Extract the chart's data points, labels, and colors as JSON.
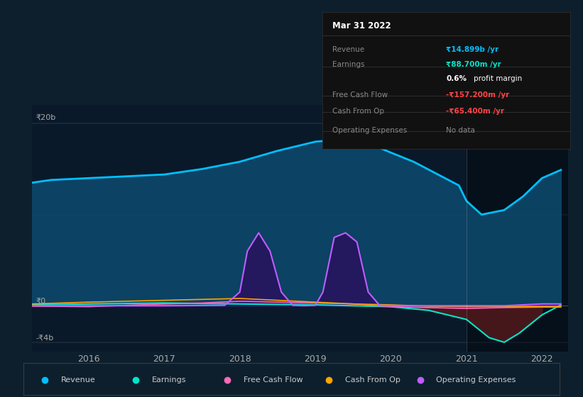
{
  "bg_color": "#0d1f2d",
  "plot_bg": "#0a1929",
  "x_ticks": [
    2016,
    2017,
    2018,
    2019,
    2020,
    2021,
    2022
  ],
  "x_min": 2015.25,
  "x_max": 2022.35,
  "y_min": -5000000000,
  "y_max": 22000000000,
  "shade_start": 2021.0,
  "grid_lines": [
    20000000000,
    10000000000,
    0,
    -4000000000
  ],
  "ylabel_top": "₹20b",
  "ylabel_zero": "₹0",
  "ylabel_bottom": "-₹4b",
  "legend": [
    {
      "label": "Revenue",
      "color": "#00bfff"
    },
    {
      "label": "Earnings",
      "color": "#00e5cc"
    },
    {
      "label": "Free Cash Flow",
      "color": "#ff69b4"
    },
    {
      "label": "Cash From Op",
      "color": "#ffa500"
    },
    {
      "label": "Operating Expenses",
      "color": "#bf5fff"
    }
  ],
  "info_box": {
    "title": "Mar 31 2022",
    "rows": [
      {
        "label": "Revenue",
        "value": "₹14.899b /yr",
        "value_color": "#00bfff"
      },
      {
        "label": "Earnings",
        "value": "₹88.700m /yr",
        "value_color": "#00e5cc"
      },
      {
        "label": "",
        "value": "0.6% profit margin",
        "value_color": "#ffffff"
      },
      {
        "label": "Free Cash Flow",
        "value": "-₹157.200m /yr",
        "value_color": "#ff4444"
      },
      {
        "label": "Cash From Op",
        "value": "-₹65.400m /yr",
        "value_color": "#ff4444"
      },
      {
        "label": "Operating Expenses",
        "value": "No data",
        "value_color": "#888888"
      }
    ]
  },
  "revenue": {
    "x": [
      2015.25,
      2015.5,
      2016.0,
      2016.5,
      2017.0,
      2017.5,
      2018.0,
      2018.5,
      2019.0,
      2019.3,
      2019.5,
      2019.8,
      2020.0,
      2020.3,
      2020.6,
      2020.9,
      2021.0,
      2021.2,
      2021.5,
      2021.75,
      2022.0,
      2022.25
    ],
    "y": [
      13500000000,
      13800000000,
      14000000000,
      14200000000,
      14400000000,
      15000000000,
      15800000000,
      17000000000,
      18000000000,
      18200000000,
      18100000000,
      17500000000,
      16800000000,
      15800000000,
      14500000000,
      13200000000,
      11500000000,
      10000000000,
      10500000000,
      12000000000,
      14000000000,
      14899000000
    ],
    "color": "#00bfff",
    "fill_color": "#0d4a6e",
    "linewidth": 2.0
  },
  "earnings": {
    "x": [
      2015.25,
      2016.0,
      2017.0,
      2018.0,
      2019.0,
      2020.0,
      2020.5,
      2021.0,
      2021.3,
      2021.5,
      2021.7,
      2022.0,
      2022.25
    ],
    "y": [
      100000000,
      200000000,
      300000000,
      200000000,
      100000000,
      -100000000,
      -500000000,
      -1500000000,
      -3500000000,
      -4000000000,
      -3000000000,
      -1000000000,
      88700000
    ],
    "color": "#00e5cc",
    "fill_color": "#5c1a1a",
    "linewidth": 1.5
  },
  "free_cash_flow": {
    "x": [
      2015.25,
      2016.0,
      2017.0,
      2017.5,
      2018.0,
      2018.5,
      2019.0,
      2019.5,
      2020.0,
      2020.5,
      2021.0,
      2021.5,
      2022.0,
      2022.25
    ],
    "y": [
      -50000000,
      -100000000,
      200000000,
      300000000,
      500000000,
      400000000,
      300000000,
      200000000,
      -100000000,
      -200000000,
      -300000000,
      -200000000,
      -150000000,
      -157200000
    ],
    "color": "#ff69b4",
    "linewidth": 1.2
  },
  "cash_from_op": {
    "x": [
      2015.25,
      2016.0,
      2017.0,
      2017.5,
      2018.0,
      2018.5,
      2019.0,
      2019.5,
      2020.0,
      2020.5,
      2021.0,
      2021.5,
      2022.0,
      2022.25
    ],
    "y": [
      200000000,
      400000000,
      600000000,
      700000000,
      800000000,
      600000000,
      400000000,
      200000000,
      100000000,
      -50000000,
      -100000000,
      -80000000,
      -60000000,
      -65400000
    ],
    "color": "#ffa500",
    "linewidth": 1.2
  },
  "op_expenses": {
    "x": [
      2015.25,
      2016.0,
      2017.0,
      2017.8,
      2018.0,
      2018.1,
      2018.25,
      2018.4,
      2018.55,
      2018.7,
      2018.85,
      2019.0,
      2019.1,
      2019.25,
      2019.4,
      2019.55,
      2019.7,
      2019.85,
      2020.0,
      2020.5,
      2021.0,
      2021.5,
      2022.0,
      2022.25
    ],
    "y": [
      0,
      0,
      0,
      50000000,
      1500000000,
      6000000000,
      8000000000,
      6000000000,
      1500000000,
      50000000,
      10000000,
      50000000,
      1500000000,
      7500000000,
      8000000000,
      7000000000,
      1500000000,
      50000000,
      0,
      0,
      0,
      0,
      200000000,
      200000000
    ],
    "color": "#bf5fff",
    "fill_color": "#2d0a5e",
    "linewidth": 1.5
  }
}
